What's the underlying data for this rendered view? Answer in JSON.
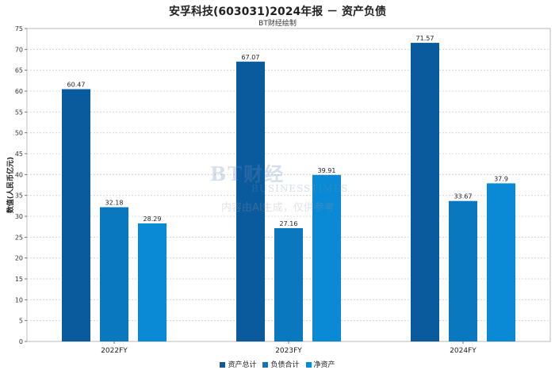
{
  "chart_data": {
    "type": "bar",
    "title": "安孚科技(603031)2024年报 － 资产负债",
    "subtitle": "BT财经绘制",
    "ylabel": "数值(人民币亿元)",
    "xlabel": "",
    "categories": [
      "2022FY",
      "2023FY",
      "2024FY"
    ],
    "ylim": [
      0,
      75
    ],
    "yticks": [
      0,
      5,
      10,
      15,
      20,
      25,
      30,
      35,
      40,
      45,
      50,
      55,
      60,
      65,
      70,
      75
    ],
    "grid": true,
    "legend_position": "bottom",
    "series": [
      {
        "name": "资产总计",
        "color": "#0a5a9e",
        "values": [
          60.47,
          67.07,
          71.57
        ],
        "labels": [
          "60.47",
          "67.07",
          "71.57"
        ]
      },
      {
        "name": "负债合计",
        "color": "#0a78bf",
        "values": [
          32.18,
          27.16,
          33.67
        ],
        "labels": [
          "32.18",
          "27.16",
          "33.67"
        ]
      },
      {
        "name": "净资产",
        "color": "#0a8ad4",
        "values": [
          28.29,
          39.91,
          37.9
        ],
        "labels": [
          "28.29",
          "39.91",
          "37.9"
        ]
      }
    ]
  },
  "watermark": {
    "brand": "BT财经",
    "sub": "BUSINESSTIMES",
    "note": "内容由AI生成，仅供参考"
  }
}
